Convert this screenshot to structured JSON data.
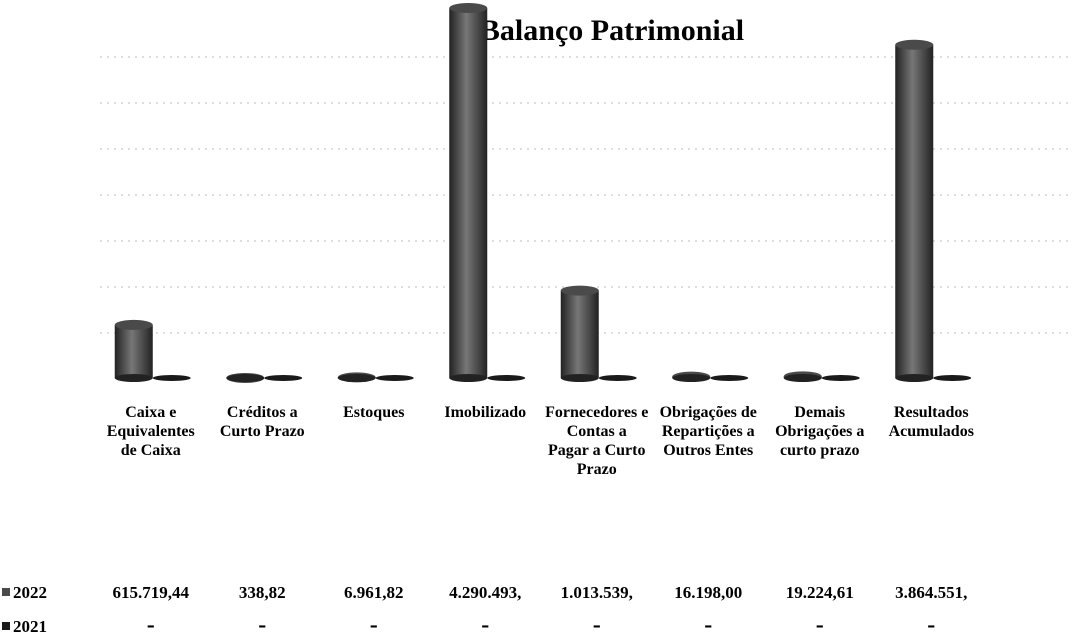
{
  "chart_data": {
    "type": "bar",
    "title": "Balanço Patrimonial",
    "categories": [
      "Caixa e Equivalentes de Caixa",
      "Créditos a Curto Prazo",
      "Estoques",
      "Imobilizado",
      "Fornecedores e Contas a Pagar a Curto Prazo",
      "Obrigações de Repartições a Outros Entes",
      "Demais Obrigações a curto prazo",
      "Resultados Acumulados"
    ],
    "series": [
      {
        "name": "2022",
        "color": "#4a4a4a",
        "values": [
          615719.44,
          338.82,
          6961.82,
          4290493,
          1013539,
          16198.0,
          19224.61,
          3864551
        ],
        "value_labels": [
          "615.719,44",
          "338,82",
          "6.961,82",
          "4.290.493,",
          "1.013.539,",
          "16.198,00",
          "19.224,61",
          "3.864.551,"
        ]
      },
      {
        "name": "2021",
        "color": "#1a1a1a",
        "values": [
          0,
          0,
          0,
          0,
          0,
          0,
          0,
          0
        ],
        "value_labels": [
          "-",
          "-",
          "-",
          "-",
          "-",
          "-",
          "-",
          "-"
        ]
      }
    ]
  }
}
